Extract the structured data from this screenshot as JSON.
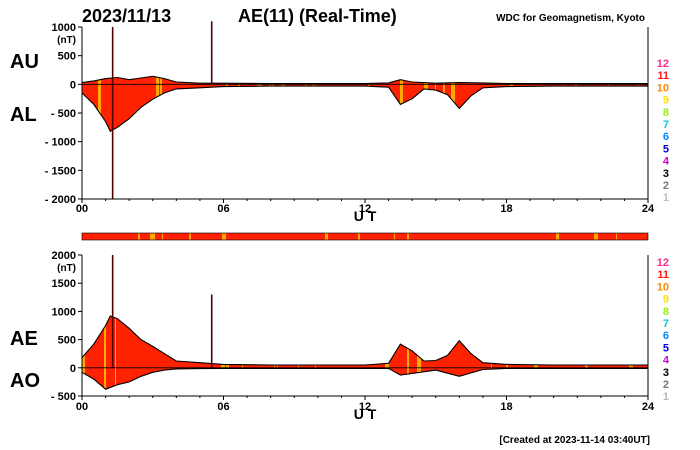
{
  "header": {
    "date": "2023/11/13",
    "title": "AE(11) (Real-Time)",
    "source": "WDC for Geomagnetism, Kyoto"
  },
  "footer": {
    "created": "[Created at 2023-11-14 03:40UT]"
  },
  "colors": {
    "red": "#ff2200",
    "orange": "#ffaa00",
    "strip_bg": "#ff2200",
    "axis": "#000000"
  },
  "station_count_legend": [
    {
      "label": "12",
      "color": "#ff2a8a"
    },
    {
      "label": "11",
      "color": "#ff1a1a"
    },
    {
      "label": "10",
      "color": "#ff8800"
    },
    {
      "label": "9",
      "color": "#ffe000"
    },
    {
      "label": "8",
      "color": "#99ee00"
    },
    {
      "label": "7",
      "color": "#00cccc"
    },
    {
      "label": "6",
      "color": "#0088ff"
    },
    {
      "label": "5",
      "color": "#0000dd"
    },
    {
      "label": "4",
      "color": "#cc00cc"
    },
    {
      "label": "3",
      "color": "#000000"
    },
    {
      "label": "2",
      "color": "#777777"
    },
    {
      "label": "1",
      "color": "#bbbbbb"
    }
  ],
  "chart_data": [
    {
      "type": "area",
      "panel": "AU/AL",
      "left_labels": [
        "AU",
        "AL"
      ],
      "xlabel": "U T",
      "xlim": [
        0,
        24
      ],
      "xticks": [
        "00",
        "06",
        "12",
        "18",
        "24"
      ],
      "ylabel": "(nT)",
      "ylim": [
        -2000,
        1000
      ],
      "yticks": [
        "1000",
        "500",
        "0",
        "- 500",
        "- 1000",
        "- 1500",
        "- 2000"
      ],
      "spikes": [
        {
          "x": 1.3,
          "y_top": 1000,
          "y_bottom": -2000
        },
        {
          "x": 5.5,
          "y_top": 1100,
          "y_bottom": 0
        }
      ],
      "series": [
        {
          "name": "AU",
          "x": [
            0,
            0.5,
            1.0,
            1.5,
            2.0,
            2.5,
            3.0,
            3.5,
            4.0,
            5.0,
            6.0,
            8.0,
            10.0,
            12.0,
            13.0,
            13.5,
            14.0,
            15.0,
            16.0,
            17.0,
            18.0,
            20.0,
            22.0,
            24.0
          ],
          "y": [
            30,
            60,
            100,
            120,
            80,
            110,
            140,
            100,
            40,
            20,
            20,
            15,
            15,
            15,
            25,
            80,
            40,
            20,
            30,
            25,
            15,
            15,
            15,
            15
          ]
        },
        {
          "name": "AL",
          "x": [
            0,
            0.5,
            1.0,
            1.2,
            1.5,
            2.0,
            2.5,
            3.0,
            3.5,
            4.0,
            5.0,
            6.0,
            8.0,
            10.0,
            12.0,
            13.0,
            13.5,
            14.0,
            14.5,
            15.0,
            15.5,
            16.0,
            16.5,
            17.0,
            18.0,
            20.0,
            22.0,
            24.0
          ],
          "y": [
            -150,
            -350,
            -650,
            -820,
            -750,
            -600,
            -400,
            -260,
            -150,
            -80,
            -60,
            -40,
            -30,
            -30,
            -30,
            -50,
            -350,
            -250,
            -80,
            -100,
            -180,
            -420,
            -200,
            -60,
            -40,
            -30,
            -30,
            -30
          ]
        }
      ]
    },
    {
      "type": "area",
      "panel": "AE/AO",
      "left_labels": [
        "AE",
        "AO"
      ],
      "xlabel": "U T",
      "xlim": [
        0,
        24
      ],
      "xticks": [
        "00",
        "06",
        "12",
        "18",
        "24"
      ],
      "ylabel": "(nT)",
      "ylim": [
        -500,
        2000
      ],
      "yticks": [
        "2000",
        "1500",
        "1000",
        "500",
        "0",
        "- 500"
      ],
      "spikes": [
        {
          "x": 1.3,
          "y_top": 2000,
          "y_bottom": 0
        },
        {
          "x": 5.5,
          "y_top": 1300,
          "y_bottom": 0
        }
      ],
      "series": [
        {
          "name": "AE",
          "x": [
            0,
            0.5,
            1.0,
            1.2,
            1.5,
            2.0,
            2.5,
            3.0,
            3.5,
            4.0,
            5.0,
            6.0,
            8.0,
            10.0,
            12.0,
            13.0,
            13.5,
            14.0,
            14.5,
            15.0,
            15.5,
            16.0,
            16.5,
            17.0,
            18.0,
            20.0,
            22.0,
            24.0
          ],
          "y": [
            180,
            420,
            750,
            920,
            870,
            700,
            500,
            380,
            250,
            120,
            90,
            60,
            50,
            50,
            50,
            80,
            420,
            300,
            120,
            130,
            220,
            480,
            250,
            90,
            60,
            50,
            50,
            50
          ]
        },
        {
          "name": "AO",
          "x": [
            0,
            0.5,
            1.0,
            1.5,
            2.0,
            2.5,
            3.0,
            3.5,
            4.0,
            5.0,
            6.0,
            8.0,
            10.0,
            12.0,
            13.0,
            13.5,
            14.0,
            15.0,
            16.0,
            17.0,
            18.0,
            20.0,
            22.0,
            24.0
          ],
          "y": [
            -80,
            -200,
            -380,
            -300,
            -250,
            -150,
            -80,
            -40,
            -20,
            -15,
            -10,
            -10,
            -10,
            -10,
            -10,
            -130,
            -100,
            -40,
            -150,
            -30,
            -10,
            -10,
            -10,
            -10
          ]
        }
      ]
    }
  ]
}
